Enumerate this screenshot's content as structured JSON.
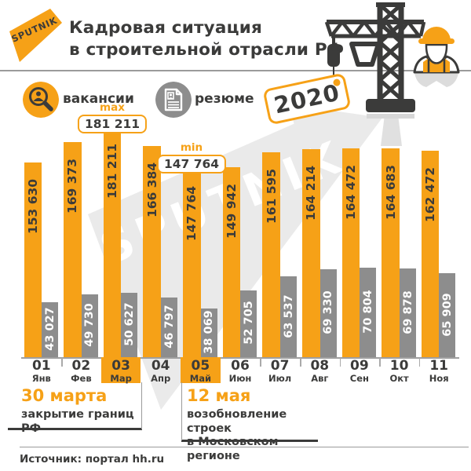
{
  "brand": {
    "logo_text": "SPUTNIK"
  },
  "header": {
    "title_line1": "Кадровая ситуация",
    "title_line2": "в строительной отрасли РФ",
    "year_tag": "2020"
  },
  "legend": {
    "vacancies_label": "вакансии",
    "resumes_label": "резюме"
  },
  "chart_data": {
    "type": "bar",
    "title": "Кадровая ситуация в строительной отрасли РФ",
    "year": "2020",
    "ylim": [
      0,
      181211
    ],
    "grid": false,
    "legend_position": "top",
    "categories": [
      {
        "num": "01",
        "month": "Янв",
        "highlight": false
      },
      {
        "num": "02",
        "month": "Фев",
        "highlight": false
      },
      {
        "num": "03",
        "month": "Мар",
        "highlight": true
      },
      {
        "num": "04",
        "month": "Апр",
        "highlight": false
      },
      {
        "num": "05",
        "month": "Май",
        "highlight": true
      },
      {
        "num": "06",
        "month": "Июн",
        "highlight": false
      },
      {
        "num": "07",
        "month": "Июл",
        "highlight": false
      },
      {
        "num": "08",
        "month": "Авг",
        "highlight": false
      },
      {
        "num": "09",
        "month": "Сен",
        "highlight": false
      },
      {
        "num": "10",
        "month": "Окт",
        "highlight": false
      },
      {
        "num": "11",
        "month": "Ноя",
        "highlight": false
      }
    ],
    "series": [
      {
        "name": "вакансии",
        "color": "#F6A117",
        "values": [
          153630,
          169373,
          181211,
          166384,
          147764,
          149942,
          161595,
          164214,
          164472,
          164683,
          162472
        ],
        "labels": [
          "153 630",
          "169 373",
          "181 211",
          "166 384",
          "147 764",
          "149 942",
          "161 595",
          "164 214",
          "164 472",
          "164 683",
          "162 472"
        ]
      },
      {
        "name": "резюме",
        "color": "#8D8D8D",
        "values": [
          43027,
          49730,
          50627,
          46797,
          38069,
          52705,
          63537,
          69330,
          70804,
          69878,
          65909
        ],
        "labels": [
          "43 027",
          "49 730",
          "50 627",
          "46 797",
          "38 069",
          "52 705",
          "63 537",
          "69 330",
          "70 804",
          "69 878",
          "65 909"
        ]
      }
    ],
    "max_label": {
      "tag": "max",
      "value": "181 211",
      "month_index": 2
    },
    "min_label": {
      "tag": "min",
      "value": "147 764",
      "month_index": 4
    }
  },
  "annotations": [
    {
      "date": "30 марта",
      "lines": [
        "закрытие границ РФ"
      ]
    },
    {
      "date": "12 мая",
      "lines": [
        "возобновление строек",
        "в Московском регионе"
      ]
    }
  ],
  "source": {
    "label": "Источник: портал hh.ru"
  },
  "watermark": "SPUTNIK",
  "colors": {
    "orange": "#F6A117",
    "dark": "#3B3B3A",
    "gray_bar": "#8D8D8D",
    "light_gray": "#EAEAEA",
    "line_gray": "#9B9B9B"
  }
}
